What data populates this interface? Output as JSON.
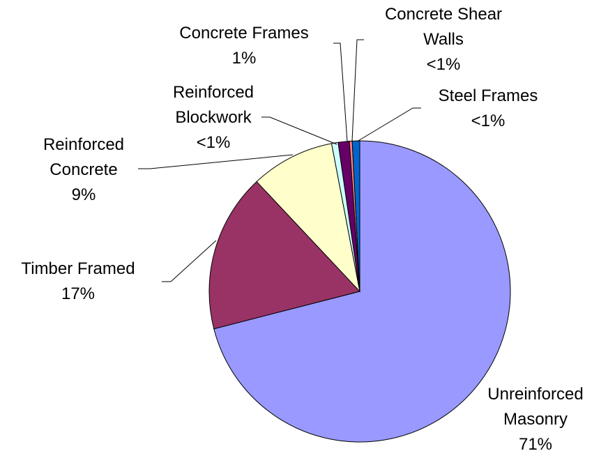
{
  "chart_data": {
    "type": "pie",
    "categories": [
      "Unreinforced Masonry",
      "Timber Framed",
      "Reinforced Concrete",
      "Reinforced Blockwork",
      "Concrete Frames",
      "Concrete Shear Walls",
      "Steel Frames"
    ],
    "values": [
      71,
      17,
      9,
      0.7,
      1.2,
      0.3,
      0.8
    ],
    "value_labels": [
      "71%",
      "17%",
      "9%",
      "<1%",
      "1%",
      "<1%",
      "<1%"
    ],
    "colors": [
      "#9999ff",
      "#993366",
      "#ffffcc",
      "#ccffff",
      "#660066",
      "#ff8080",
      "#0066cc"
    ]
  }
}
